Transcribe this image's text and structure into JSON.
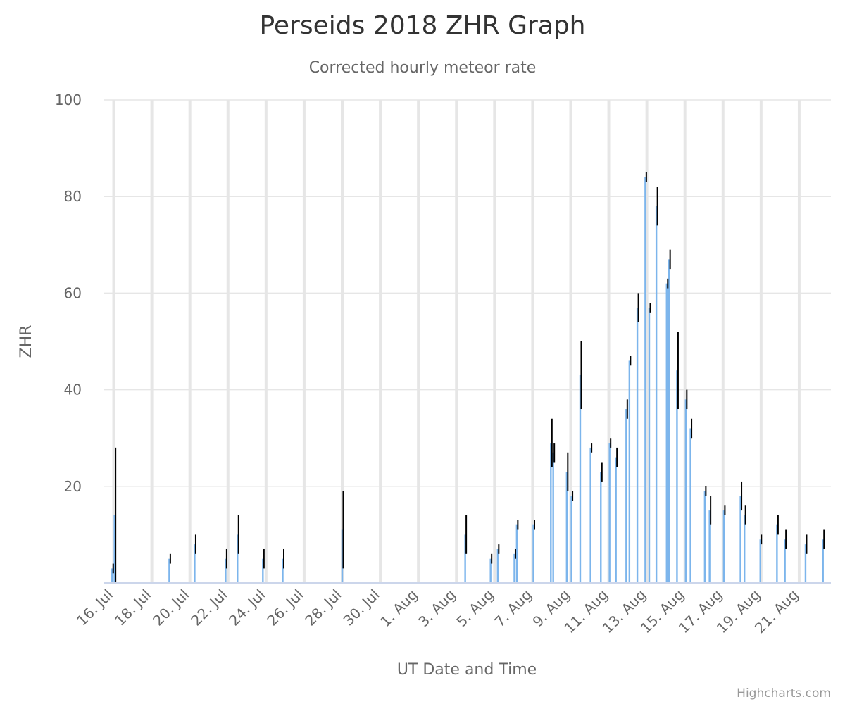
{
  "chart_data": {
    "type": "bar",
    "title": "Perseids 2018 ZHR Graph",
    "subtitle": "Corrected hourly meteor rate",
    "xlabel": "UT Date and Time",
    "ylabel": "ZHR",
    "credits": "Highcharts.com",
    "colors": {
      "bar": "#7cb5ec",
      "error": "#000000",
      "grid": "#e6e6e6",
      "axis": "#ccd6eb",
      "text": "#666666",
      "title": "#333333"
    },
    "grid": true,
    "ylim": [
      0,
      100
    ],
    "yticks": [
      0,
      20,
      40,
      60,
      80,
      100
    ],
    "xlim": [
      "2018-07-15T12:00",
      "2018-08-22T16:00"
    ],
    "xticks": [
      {
        "date": "2018-07-16",
        "label": "16. Jul"
      },
      {
        "date": "2018-07-18",
        "label": "18. Jul"
      },
      {
        "date": "2018-07-20",
        "label": "20. Jul"
      },
      {
        "date": "2018-07-22",
        "label": "22. Jul"
      },
      {
        "date": "2018-07-24",
        "label": "24. Jul"
      },
      {
        "date": "2018-07-26",
        "label": "26. Jul"
      },
      {
        "date": "2018-07-28",
        "label": "28. Jul"
      },
      {
        "date": "2018-07-30",
        "label": "30. Jul"
      },
      {
        "date": "2018-08-01",
        "label": "1. Aug"
      },
      {
        "date": "2018-08-03",
        "label": "3. Aug"
      },
      {
        "date": "2018-08-05",
        "label": "5. Aug"
      },
      {
        "date": "2018-08-07",
        "label": "7. Aug"
      },
      {
        "date": "2018-08-09",
        "label": "9. Aug"
      },
      {
        "date": "2018-08-11",
        "label": "11. Aug"
      },
      {
        "date": "2018-08-13",
        "label": "13. Aug"
      },
      {
        "date": "2018-08-15",
        "label": "15. Aug"
      },
      {
        "date": "2018-08-17",
        "label": "17. Aug"
      },
      {
        "date": "2018-08-19",
        "label": "19. Aug"
      },
      {
        "date": "2018-08-21",
        "label": "21. Aug"
      }
    ],
    "series": [
      {
        "points": [
          {
            "x": "2018-07-15T22:00",
            "y": 3,
            "low": 2,
            "high": 4
          },
          {
            "x": "2018-07-16T01:00",
            "y": 14,
            "low": 0,
            "high": 28
          },
          {
            "x": "2018-07-18T22:00",
            "y": 5,
            "low": 4,
            "high": 6
          },
          {
            "x": "2018-07-20T06:00",
            "y": 8,
            "low": 6,
            "high": 10
          },
          {
            "x": "2018-07-21T21:00",
            "y": 5,
            "low": 3,
            "high": 7
          },
          {
            "x": "2018-07-22T12:00",
            "y": 10,
            "low": 6,
            "high": 14
          },
          {
            "x": "2018-07-23T20:00",
            "y": 5,
            "low": 3,
            "high": 7
          },
          {
            "x": "2018-07-24T21:00",
            "y": 5,
            "low": 3,
            "high": 7
          },
          {
            "x": "2018-07-28T00:00",
            "y": 11,
            "low": 3,
            "high": 19
          },
          {
            "x": "2018-08-03T11:00",
            "y": 10,
            "low": 6,
            "high": 14
          },
          {
            "x": "2018-08-04T19:00",
            "y": 5,
            "low": 4,
            "high": 6
          },
          {
            "x": "2018-08-05T04:00",
            "y": 7,
            "low": 6,
            "high": 8
          },
          {
            "x": "2018-08-06T01:00",
            "y": 6,
            "low": 5,
            "high": 7
          },
          {
            "x": "2018-08-06T04:00",
            "y": 12,
            "low": 11,
            "high": 13
          },
          {
            "x": "2018-08-07T01:00",
            "y": 12,
            "low": 11,
            "high": 13
          },
          {
            "x": "2018-08-07T23:00",
            "y": 29,
            "low": 24,
            "high": 34
          },
          {
            "x": "2018-08-08T02:00",
            "y": 27,
            "low": 25,
            "high": 29
          },
          {
            "x": "2018-08-08T19:00",
            "y": 23,
            "low": 19,
            "high": 27
          },
          {
            "x": "2018-08-09T01:00",
            "y": 18,
            "low": 17,
            "high": 19
          },
          {
            "x": "2018-08-09T12:00",
            "y": 43,
            "low": 36,
            "high": 50
          },
          {
            "x": "2018-08-10T01:00",
            "y": 28,
            "low": 27,
            "high": 29
          },
          {
            "x": "2018-08-10T14:00",
            "y": 23,
            "low": 21,
            "high": 25
          },
          {
            "x": "2018-08-11T01:00",
            "y": 29,
            "low": 28,
            "high": 30
          },
          {
            "x": "2018-08-11T09:00",
            "y": 26,
            "low": 24,
            "high": 28
          },
          {
            "x": "2018-08-11T22:00",
            "y": 36,
            "low": 34,
            "high": 38
          },
          {
            "x": "2018-08-12T02:00",
            "y": 46,
            "low": 45,
            "high": 47
          },
          {
            "x": "2018-08-12T12:00",
            "y": 57,
            "low": 54,
            "high": 60
          },
          {
            "x": "2018-08-12T22:00",
            "y": 84,
            "low": 83,
            "high": 85
          },
          {
            "x": "2018-08-13T03:00",
            "y": 57,
            "low": 56,
            "high": 58
          },
          {
            "x": "2018-08-13T12:00",
            "y": 78,
            "low": 74,
            "high": 82
          },
          {
            "x": "2018-08-14T01:00",
            "y": 62,
            "low": 61,
            "high": 63
          },
          {
            "x": "2018-08-14T04:00",
            "y": 67,
            "low": 65,
            "high": 69
          },
          {
            "x": "2018-08-14T14:00",
            "y": 44,
            "low": 36,
            "high": 52
          },
          {
            "x": "2018-08-15T01:00",
            "y": 38,
            "low": 36,
            "high": 40
          },
          {
            "x": "2018-08-15T07:00",
            "y": 32,
            "low": 30,
            "high": 34
          },
          {
            "x": "2018-08-16T01:00",
            "y": 19,
            "low": 18,
            "high": 20
          },
          {
            "x": "2018-08-16T07:00",
            "y": 15,
            "low": 12,
            "high": 18
          },
          {
            "x": "2018-08-17T01:00",
            "y": 15,
            "low": 14,
            "high": 16
          },
          {
            "x": "2018-08-17T22:00",
            "y": 18,
            "low": 15,
            "high": 21
          },
          {
            "x": "2018-08-18T03:00",
            "y": 14,
            "low": 12,
            "high": 16
          },
          {
            "x": "2018-08-18T23:00",
            "y": 9,
            "low": 8,
            "high": 10
          },
          {
            "x": "2018-08-19T20:00",
            "y": 12,
            "low": 10,
            "high": 14
          },
          {
            "x": "2018-08-20T06:00",
            "y": 9,
            "low": 7,
            "high": 11
          },
          {
            "x": "2018-08-21T08:00",
            "y": 8,
            "low": 6,
            "high": 10
          },
          {
            "x": "2018-08-22T06:00",
            "y": 9,
            "low": 7,
            "high": 11
          }
        ]
      }
    ]
  }
}
